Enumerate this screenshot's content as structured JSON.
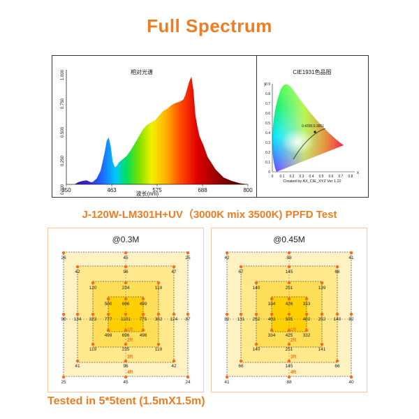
{
  "title": "Full Spectrum",
  "subtitle": "J-120W-LM301H+UV（3000K mix 3500K)  PPFD Test",
  "footer": "Tested in 5*5tent (1.5mX1.5m)",
  "colors": {
    "accent": "#ed7d22",
    "grid_fill_outer": "#fff3c4",
    "grid_fill_inner": "#ffd400",
    "dot": "#ff6a1a"
  },
  "spectrum": {
    "title": "相对光谱",
    "xlabel": "波长(nm)",
    "x_ticks": [
      "350",
      "463",
      "575",
      "688",
      "800"
    ],
    "y_ticks": [
      "0.000",
      "0.250",
      "0.500",
      "0.750",
      "1.000"
    ]
  },
  "cie": {
    "title": "CIE1931色品图",
    "y_axis": "y",
    "x_axis": "x",
    "x_ticks": [
      "0",
      "0.1",
      "0.2",
      "0.3",
      "0.4",
      "0.5",
      "0.6",
      "0.7",
      "0.8"
    ],
    "y_ticks": [
      "0",
      "0.1",
      "0.2",
      "0.3",
      "0.4",
      "0.5",
      "0.6",
      "0.7",
      "0.8",
      "0.9"
    ],
    "point_label": "0.4330,0.3951",
    "credit": "Created by AX_CIE_XYZ Ver 1.22"
  },
  "chart_data": [
    {
      "type": "area",
      "title": "相对光谱",
      "xlabel": "波长(nm)",
      "ylabel": "",
      "xlim": [
        350,
        800
      ],
      "ylim": [
        0,
        1
      ],
      "x": [
        350,
        370,
        380,
        390,
        400,
        410,
        415,
        425,
        435,
        445,
        450,
        455,
        460,
        465,
        470,
        475,
        480,
        490,
        500,
        510,
        520,
        530,
        540,
        550,
        560,
        570,
        580,
        590,
        600,
        610,
        620,
        630,
        640,
        645,
        650,
        655,
        660,
        665,
        670,
        675,
        680,
        690,
        700,
        720,
        740,
        760,
        780,
        800
      ],
      "y": [
        0,
        0,
        0.02,
        0.03,
        0.035,
        0.02,
        0.02,
        0.05,
        0.12,
        0.28,
        0.38,
        0.41,
        0.33,
        0.2,
        0.15,
        0.16,
        0.19,
        0.22,
        0.25,
        0.3,
        0.36,
        0.42,
        0.48,
        0.52,
        0.54,
        0.56,
        0.6,
        0.64,
        0.66,
        0.69,
        0.71,
        0.72,
        0.74,
        0.78,
        0.84,
        0.9,
        0.94,
        0.82,
        0.6,
        0.5,
        0.42,
        0.34,
        0.24,
        0.13,
        0.06,
        0.03,
        0.01,
        0
      ]
    },
    {
      "type": "heatmap",
      "title": "@0.3M",
      "rows": [
        [
          26,
          45,
          25
        ],
        [
          42,
          96,
          47
        ],
        [
          120,
          234,
          119
        ],
        [
          90,
          124,
          323,
          500,
          696,
          499,
          302,
          124,
          87
        ],
        [
          777,
          1101,
          775
        ],
        [
          499,
          696,
          498
        ],
        [
          119,
          235,
          119
        ],
        [
          41,
          96,
          42
        ],
        [
          25,
          45,
          24
        ]
      ],
      "ring_labels": [
        "1ft",
        "2ft",
        "3ft",
        "4ft"
      ]
    },
    {
      "type": "heatmap",
      "title": "@0.45M",
      "rows": [
        [
          42,
          88,
          41
        ],
        [
          67,
          145,
          66
        ],
        [
          140,
          251,
          139
        ],
        [
          82,
          131,
          252,
          334,
          426,
          333,
          252,
          140,
          82
        ],
        [
          403,
          505,
          402
        ],
        [
          334,
          425,
          332
        ],
        [
          140,
          251,
          141
        ],
        [
          66,
          145,
          66
        ],
        [
          41,
          88,
          40
        ]
      ],
      "ring_labels": [
        "1ft",
        "2ft",
        "3ft",
        "4ft"
      ]
    }
  ]
}
